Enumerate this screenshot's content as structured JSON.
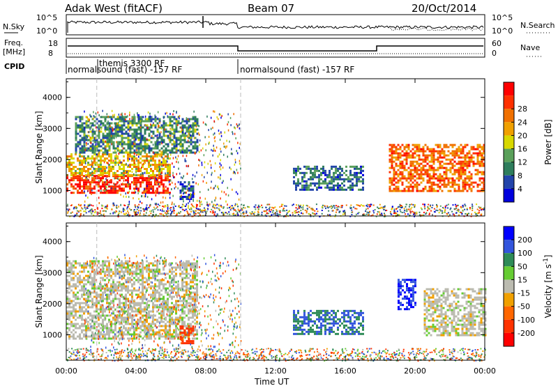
{
  "header": {
    "radar": "Adak West (fitACF)",
    "beam": "Beam 07",
    "date": "20/Oct/2014"
  },
  "noise_panel": {
    "left_label": "N.Sky",
    "right_label": "N.Search",
    "left_ticks": [
      "10^5",
      "10^0"
    ],
    "right_ticks": [
      "10^5",
      "10^0"
    ]
  },
  "freq_panel": {
    "left_label": "Freq.",
    "left_unit": "[MHz]",
    "right_label": "Nave",
    "left_ticks": [
      "18",
      "8"
    ],
    "right_ticks": [
      "60",
      "0"
    ]
  },
  "cpid": {
    "label": "CPID",
    "segments": [
      {
        "start_ut": 0,
        "end_ut": 10,
        "text": "normalsound (fast) -157 RF"
      },
      {
        "start_ut": 1.5,
        "end_ut": 10,
        "text": "themis 3300 RF"
      },
      {
        "start_ut": 10,
        "end_ut": 24,
        "text": "normalsound (fast) -157 RF"
      }
    ]
  },
  "colors": {
    "power": [
      "#0000dd",
      "#2244aa",
      "#2e7d5c",
      "#5aa05a",
      "#d8d800",
      "#f0a000",
      "#f07000",
      "#ff3000",
      "#ff0000"
    ],
    "velocity": [
      "#0000ff",
      "#3355dd",
      "#2e8b57",
      "#66cc33",
      "#bbbbb0",
      "#f0a000",
      "#ff6600",
      "#ff3300",
      "#ff0000"
    ]
  },
  "chart_data": [
    {
      "type": "heatmap",
      "panel": "power",
      "ylabel": "Slant Range [km]",
      "ylim": [
        180,
        4600
      ],
      "xlim": [
        0,
        24
      ],
      "yticks": [
        1000,
        2000,
        3000,
        4000
      ],
      "colorbar": {
        "label": "Power [dB]",
        "ticks": [
          "4",
          "8",
          "12",
          "16",
          "20",
          "24",
          "28"
        ],
        "range": [
          0,
          32
        ]
      },
      "features": [
        {
          "t0": 0,
          "t1": 6,
          "r0": 900,
          "r1": 1500,
          "level": 28
        },
        {
          "t0": 0,
          "t1": 6,
          "r0": 1500,
          "r1": 2200,
          "level": 18
        },
        {
          "t0": 0.5,
          "t1": 7.5,
          "r0": 2200,
          "r1": 3400,
          "level": 10
        },
        {
          "t0": 6.5,
          "t1": 7.3,
          "r0": 700,
          "r1": 1300,
          "level": 6
        },
        {
          "t0": 13,
          "t1": 17,
          "r0": 1000,
          "r1": 1800,
          "level": 8
        },
        {
          "t0": 18.5,
          "t1": 24,
          "r0": 1000,
          "r1": 2500,
          "level": 24
        }
      ]
    },
    {
      "type": "heatmap",
      "panel": "velocity",
      "xlabel": "Time UT",
      "ylabel": "Slant Range [km]",
      "ylim": [
        180,
        4600
      ],
      "xlim": [
        0,
        24
      ],
      "yticks": [
        1000,
        2000,
        3000,
        4000
      ],
      "xticks": [
        "00:00",
        "04:00",
        "08:00",
        "12:00",
        "16:00",
        "20:00",
        "00:00"
      ],
      "colorbar": {
        "label": "Velocity [m s^-1]",
        "ticks": [
          "200",
          "100",
          "50",
          "15",
          "-15",
          "-50",
          "-100",
          "-200"
        ]
      },
      "features": [
        {
          "t0": 0,
          "t1": 7.5,
          "r0": 900,
          "r1": 3400,
          "level": 0
        },
        {
          "t0": 6.5,
          "t1": 7.3,
          "r0": 700,
          "r1": 1300,
          "level": -200
        },
        {
          "t0": 13,
          "t1": 17,
          "r0": 1000,
          "r1": 1800,
          "level": 100
        },
        {
          "t0": 19,
          "t1": 20,
          "r0": 1800,
          "r1": 2800,
          "level": 200
        },
        {
          "t0": 20.5,
          "t1": 24,
          "r0": 1000,
          "r1": 2500,
          "level": 0
        }
      ]
    }
  ]
}
